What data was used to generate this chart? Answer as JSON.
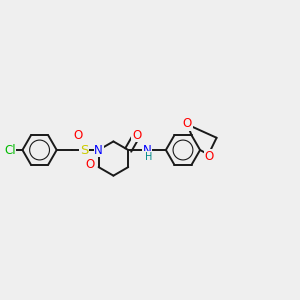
{
  "background_color": "#efefef",
  "bond_color": "#1a1a1a",
  "atom_colors": {
    "Cl": "#00bb00",
    "S": "#cccc00",
    "O": "#ff0000",
    "N": "#0000ff",
    "H": "#008888",
    "C": "#1a1a1a"
  },
  "font_size": 8.5,
  "line_width": 1.4
}
